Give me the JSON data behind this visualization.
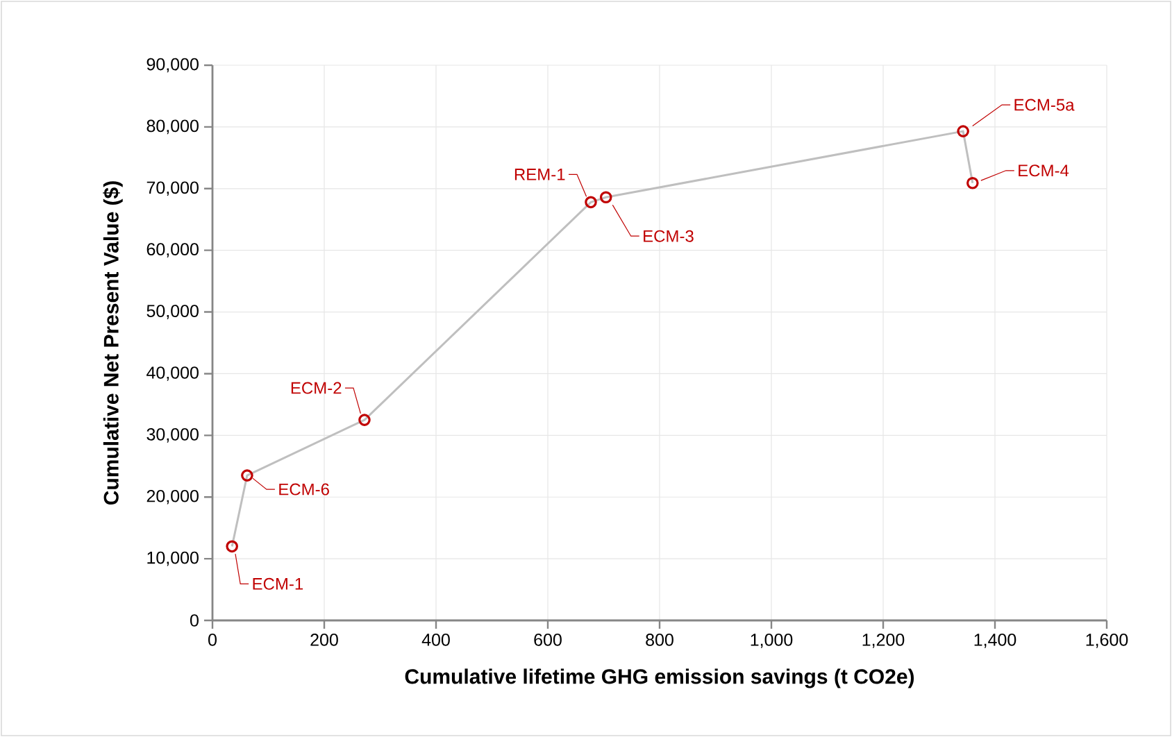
{
  "chart_data": {
    "type": "line",
    "xlabel": "Cumulative lifetime GHG emission savings (t CO2e)",
    "ylabel": "Cumulative Net Present Value ($)",
    "xlim": [
      0,
      1600
    ],
    "ylim": [
      0,
      90000
    ],
    "xticks": [
      0,
      200,
      400,
      600,
      800,
      {
        "value": 1000,
        "label": "1,000"
      },
      {
        "value": 1200,
        "label": "1,200"
      },
      {
        "value": 1400,
        "label": "1,400"
      },
      {
        "value": 1600,
        "label": "1,600"
      }
    ],
    "yticks": [
      0,
      {
        "value": 10000,
        "label": "10,000"
      },
      {
        "value": 20000,
        "label": "20,000"
      },
      {
        "value": 30000,
        "label": "30,000"
      },
      {
        "value": 40000,
        "label": "40,000"
      },
      {
        "value": 50000,
        "label": "50,000"
      },
      {
        "value": 60000,
        "label": "60,000"
      },
      {
        "value": 70000,
        "label": "70,000"
      },
      {
        "value": 80000,
        "label": "80,000"
      },
      {
        "value": 90000,
        "label": "90,000"
      }
    ],
    "grid": true,
    "x": [
      35,
      62,
      272,
      677,
      704,
      1343,
      1360
    ],
    "series": [
      {
        "color": "#bfbfbf",
        "marker": "none",
        "values": [
          12000,
          23500,
          32500,
          67800,
          68600,
          79300,
          70900
        ]
      },
      {
        "type": "scatter",
        "color": "#c00000",
        "marker": "circle",
        "values": [
          12000,
          23500,
          32500,
          67800,
          68600,
          79300,
          70900
        ]
      }
    ],
    "annotations": [
      {
        "text": "ECM-1",
        "x": 35,
        "y": 12000
      },
      {
        "text": "ECM-6",
        "x": 62,
        "y": 23500
      },
      {
        "text": "ECM-2",
        "x": 272,
        "y": 32500
      },
      {
        "text": "REM-1",
        "x": 677,
        "y": 67800
      },
      {
        "text": "ECM-3",
        "x": 704,
        "y": 68600
      },
      {
        "text": "ECM-5a",
        "x": 1343,
        "y": 79300
      },
      {
        "text": "ECM-4",
        "x": 1360,
        "y": 70900
      }
    ]
  }
}
